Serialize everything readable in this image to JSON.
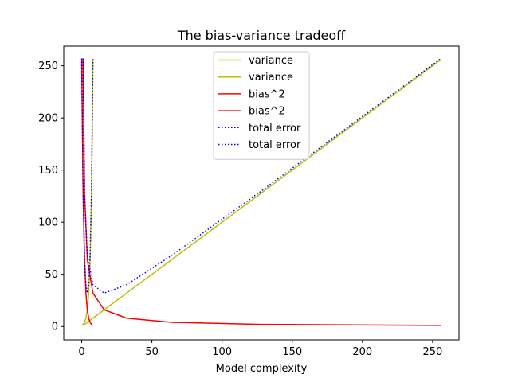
{
  "chart_data": {
    "type": "line",
    "title": "The bias-variance tradeoff",
    "xlabel": "Model complexity",
    "ylabel": "",
    "xlim": [
      -12.8,
      268.8
    ],
    "ylim": [
      -12.8,
      268.8
    ],
    "xticks": [
      0,
      50,
      100,
      150,
      200,
      250
    ],
    "yticks": [
      0,
      50,
      100,
      150,
      200,
      250
    ],
    "grid": false,
    "legend_position": "top-center",
    "series": [
      {
        "name": "variance",
        "color": "#bfbf00",
        "style": "solid",
        "x": [
          0,
          1,
          2,
          3,
          4,
          5,
          6,
          7,
          8
        ],
        "y": [
          1,
          2,
          4,
          8,
          16,
          32,
          64,
          128,
          256
        ]
      },
      {
        "name": "variance",
        "color": "#bfbf00",
        "style": "solid",
        "x": [
          1,
          2,
          4,
          8,
          16,
          32,
          64,
          128,
          256
        ],
        "y": [
          1,
          2,
          4,
          8,
          16,
          32,
          64,
          128,
          256
        ]
      },
      {
        "name": "bias^2",
        "color": "#ff0000",
        "style": "solid",
        "x": [
          0,
          1,
          2,
          3,
          4,
          5,
          6,
          7,
          8
        ],
        "y": [
          256,
          128,
          64,
          32,
          16,
          8,
          4,
          2,
          1
        ]
      },
      {
        "name": "bias^2",
        "color": "#ff0000",
        "style": "solid",
        "x": [
          1,
          2,
          4,
          8,
          16,
          32,
          64,
          128,
          256
        ],
        "y": [
          256,
          128,
          64,
          32,
          16,
          8,
          4,
          2,
          1
        ]
      },
      {
        "name": "total error",
        "color": "#0000ff",
        "style": "dotted",
        "x": [
          0,
          1,
          2,
          3,
          4,
          5,
          6,
          7,
          8
        ],
        "y": [
          257,
          130,
          68,
          40,
          32,
          40,
          68,
          130,
          257
        ]
      },
      {
        "name": "total error",
        "color": "#0000ff",
        "style": "dotted",
        "x": [
          1,
          2,
          4,
          8,
          16,
          32,
          64,
          128,
          256
        ],
        "y": [
          257,
          130,
          68,
          40,
          32,
          40,
          68,
          130,
          257
        ]
      }
    ]
  }
}
